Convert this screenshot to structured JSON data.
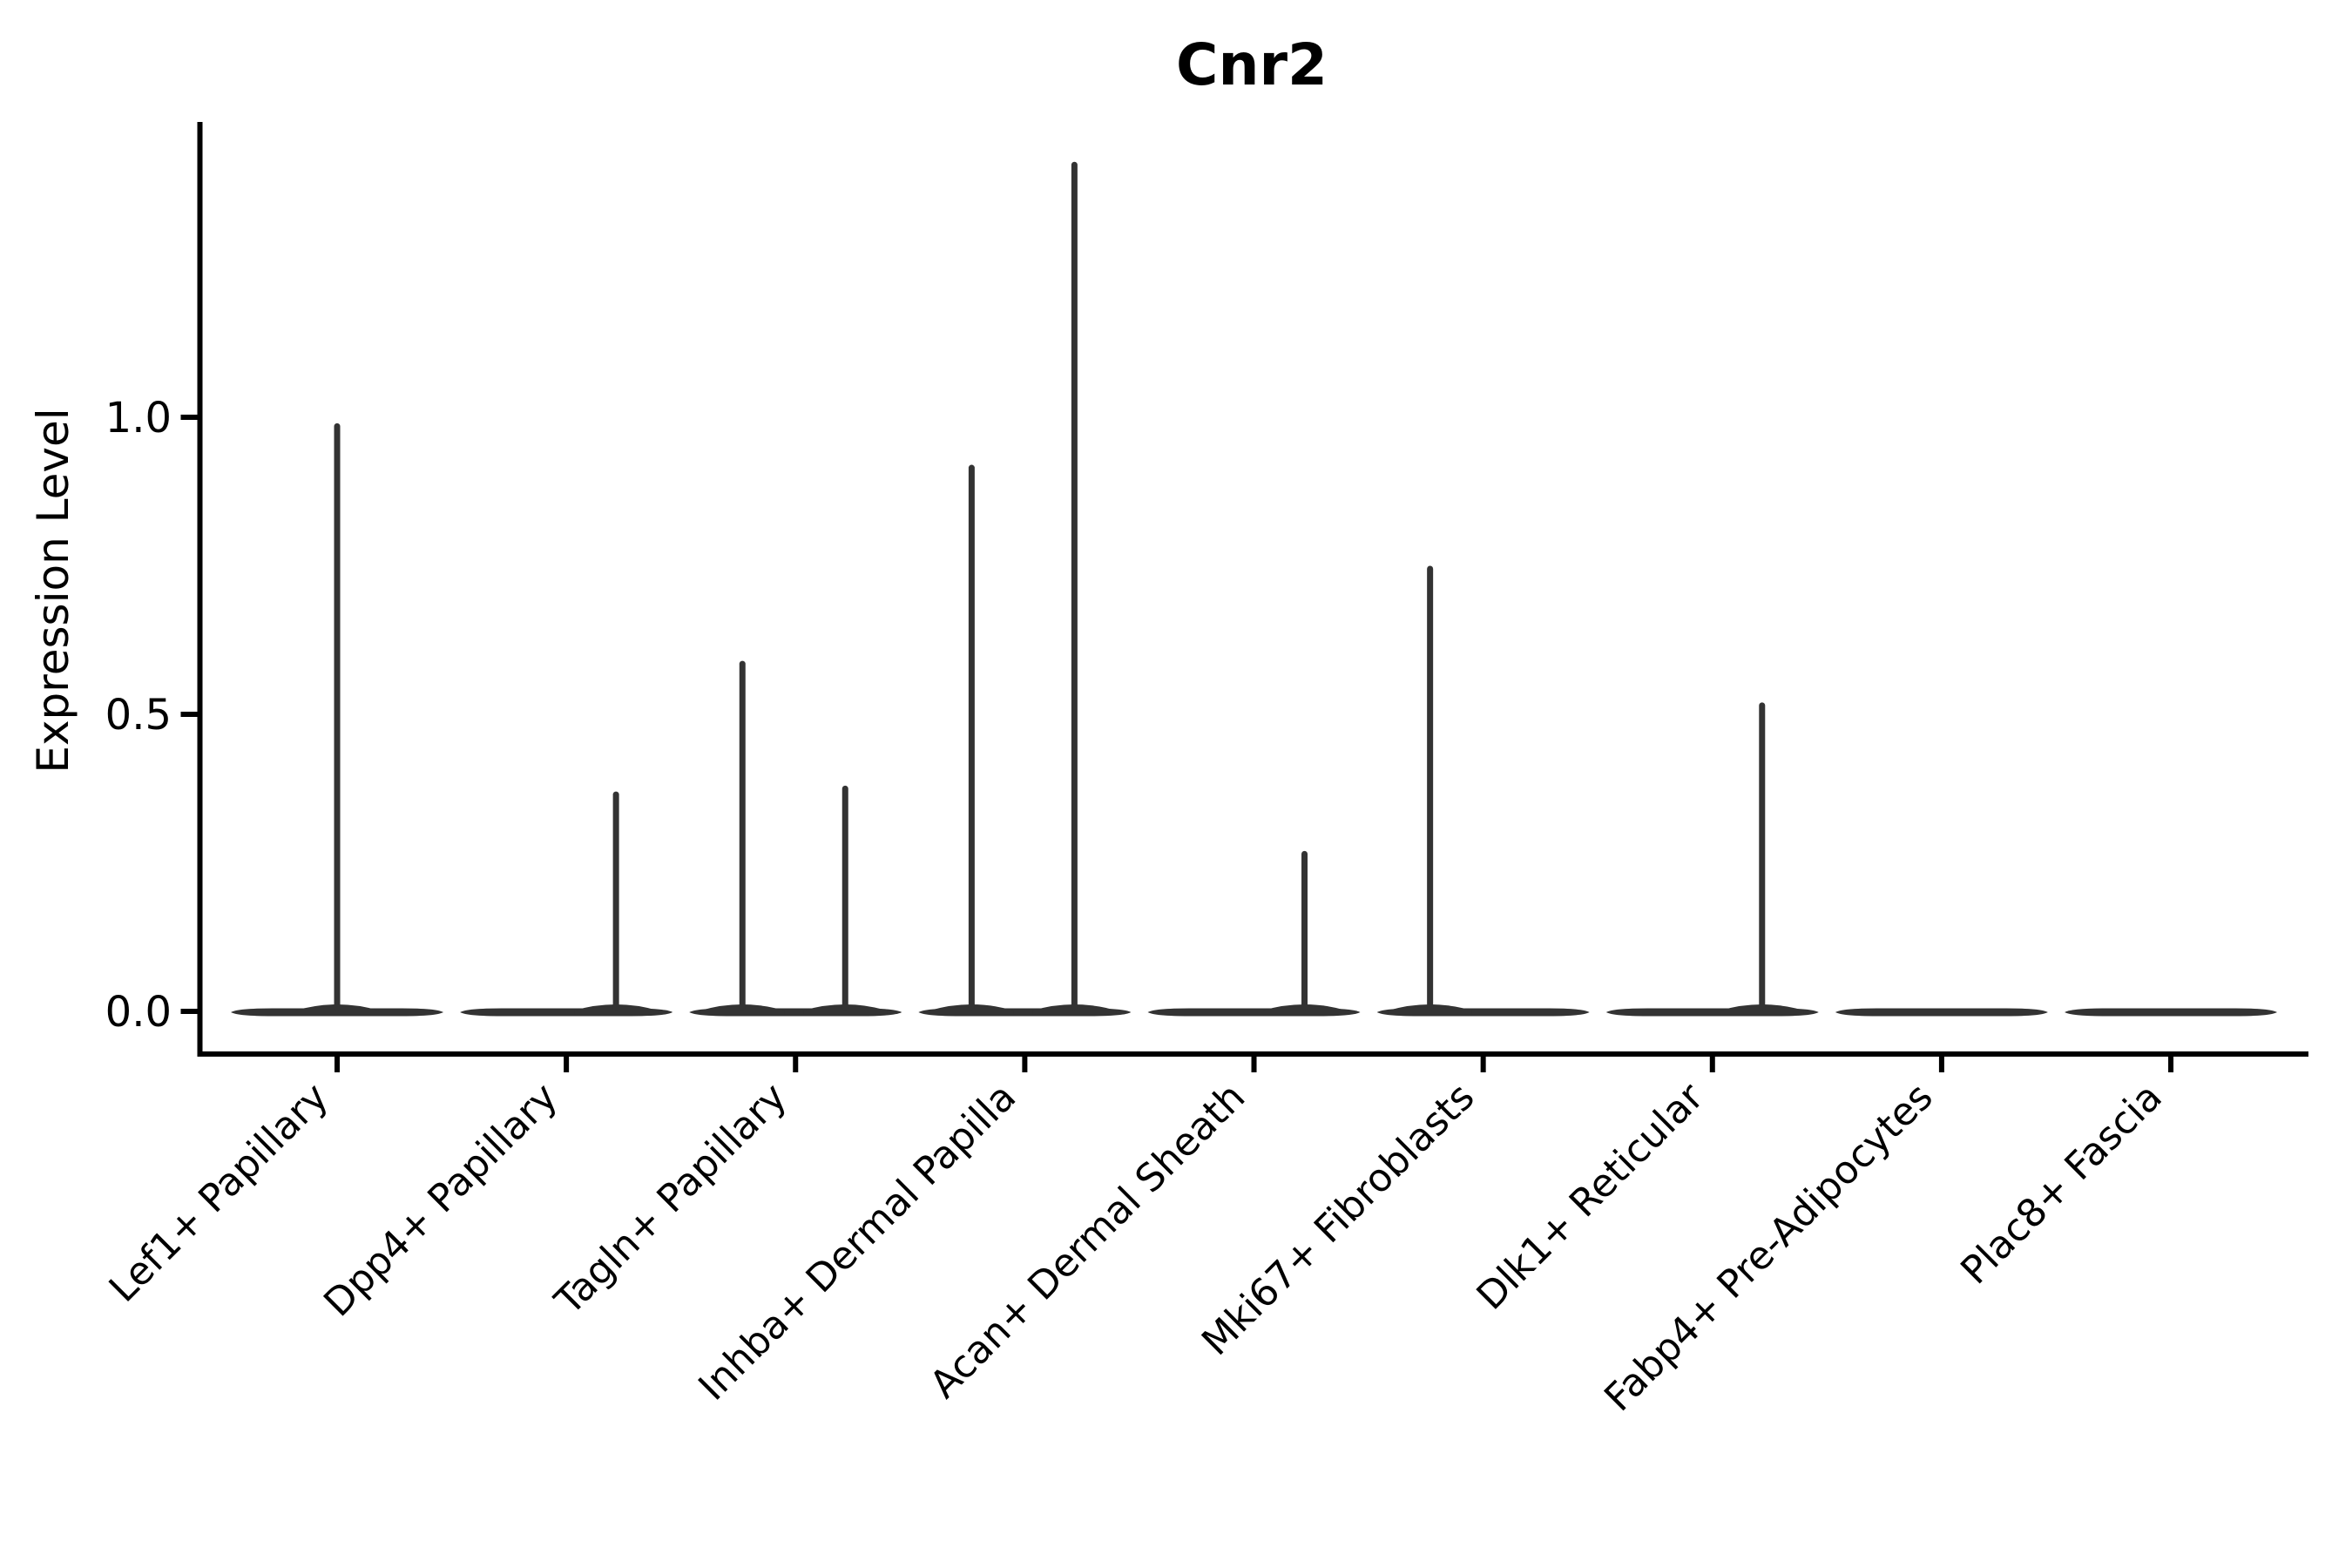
{
  "figure": {
    "title": "Cnr2"
  },
  "y_axis": {
    "label": "Expression Level",
    "tick_labels_top_to_bottom": [
      "1.0",
      "0.5",
      "0.0"
    ]
  },
  "chart_data": {
    "type": "violin",
    "title": "Cnr2",
    "xlabel": "",
    "ylabel": "Expression Level",
    "ylim": [
      0,
      1.5
    ],
    "yticks": [
      0.0,
      0.5,
      1.0
    ],
    "ytick_labels": [
      "0.0",
      "0.5",
      "1.0"
    ],
    "grid": false,
    "legend": "none",
    "x_tick_rotation_deg": 45,
    "categories": [
      "Lef1+ Papillary",
      "Dpp4+ Papillary",
      "Tagln+ Papillary",
      "Inhba+ Dermal Papilla",
      "Acan+ Dermal Sheath",
      "Mki67+ Fibroblasts",
      "Dlk1+ Reticular",
      "Fabp4+ Pre-Adipocytes",
      "Plac8+ Fascia"
    ],
    "series": [
      {
        "category": "Lef1+ Papillary",
        "baseline_value": 0.0,
        "max_expression": 0.99,
        "spikes": [
          {
            "value": 0.99,
            "dx": 0
          }
        ]
      },
      {
        "category": "Dpp4+ Papillary",
        "baseline_value": 0.0,
        "max_expression": 0.37,
        "spikes": [
          {
            "value": 0.37,
            "dx": 57
          }
        ]
      },
      {
        "category": "Tagln+ Papillary",
        "baseline_value": 0.0,
        "max_expression": 0.59,
        "spikes": [
          {
            "value": 0.59,
            "dx": -61
          },
          {
            "value": 0.38,
            "dx": 57
          }
        ]
      },
      {
        "category": "Inhba+ Dermal Papilla",
        "baseline_value": 0.0,
        "max_expression": 1.43,
        "spikes": [
          {
            "value": 0.92,
            "dx": -61
          },
          {
            "value": 1.43,
            "dx": 57
          }
        ]
      },
      {
        "category": "Acan+ Dermal Sheath",
        "baseline_value": 0.0,
        "max_expression": 0.27,
        "spikes": [
          {
            "value": 0.27,
            "dx": 58
          }
        ]
      },
      {
        "category": "Mki67+ Fibroblasts",
        "baseline_value": 0.0,
        "max_expression": 0.75,
        "spikes": [
          {
            "value": 0.75,
            "dx": -61
          }
        ]
      },
      {
        "category": "Dlk1+ Reticular",
        "baseline_value": 0.0,
        "max_expression": 0.52,
        "spikes": [
          {
            "value": 0.52,
            "dx": 57
          }
        ]
      },
      {
        "category": "Fabp4+ Pre-Adipocytes",
        "baseline_value": 0.0,
        "max_expression": 0.0,
        "spikes": []
      },
      {
        "category": "Plac8+ Fascia",
        "baseline_value": 0.0,
        "max_expression": 0.0,
        "spikes": []
      }
    ],
    "colors": {
      "violin": "#333333",
      "axis": "#000000",
      "text": "#000000",
      "background": "#ffffff"
    }
  }
}
